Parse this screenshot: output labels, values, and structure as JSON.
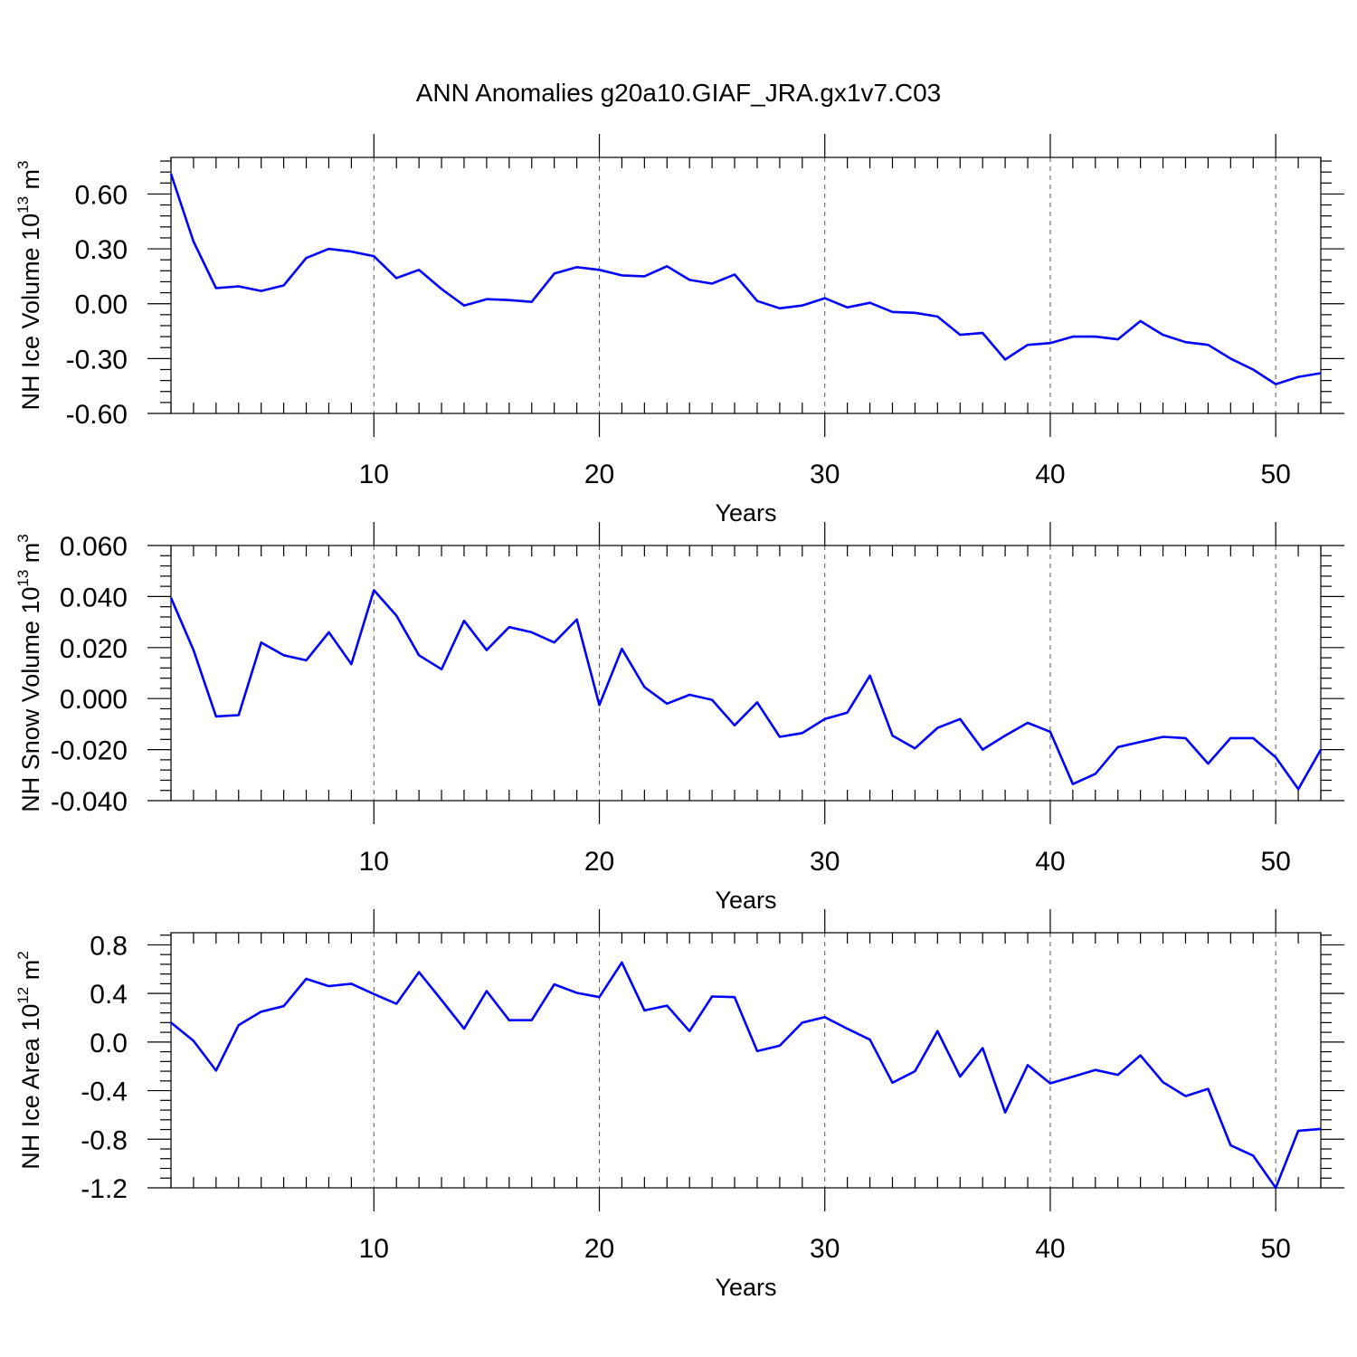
{
  "title": "ANN Anomalies g20a10.GIAF_JRA.gx1v7.C03",
  "colors": {
    "line": "#0000ff",
    "axis": "#000000",
    "grid": "#555555"
  },
  "chart_data": [
    {
      "type": "line",
      "xlabel": "Years",
      "ylabel_parts": [
        "NH Ice Volume 10",
        "13",
        " m",
        "3"
      ],
      "xlim": [
        1,
        52
      ],
      "ylim": [
        -0.6,
        0.8
      ],
      "xticks": [
        10,
        20,
        30,
        40,
        50
      ],
      "xtick_labels": [
        "10",
        "20",
        "30",
        "40",
        "50"
      ],
      "yticks": [
        -0.6,
        -0.3,
        0.0,
        0.3,
        0.6
      ],
      "ytick_labels": [
        "-0.60",
        "-0.30",
        "0.00",
        "0.30",
        "0.60"
      ],
      "y_minor_step": 0.06,
      "grid": "dashed vertical at major x ticks",
      "x": [
        1,
        2,
        3,
        4,
        5,
        6,
        7,
        8,
        9,
        10,
        11,
        12,
        13,
        14,
        15,
        16,
        17,
        18,
        19,
        20,
        21,
        22,
        23,
        24,
        25,
        26,
        27,
        28,
        29,
        30,
        31,
        32,
        33,
        34,
        35,
        36,
        37,
        38,
        39,
        40,
        41,
        42,
        43,
        44,
        45,
        46,
        47,
        48,
        49,
        50,
        51,
        52
      ],
      "y": [
        0.71,
        0.34,
        0.085,
        0.095,
        0.07,
        0.1,
        0.25,
        0.3,
        0.285,
        0.26,
        0.14,
        0.185,
        0.08,
        -0.01,
        0.025,
        0.02,
        0.01,
        0.165,
        0.2,
        0.185,
        0.155,
        0.15,
        0.205,
        0.13,
        0.11,
        0.16,
        0.015,
        -0.025,
        -0.01,
        0.03,
        -0.02,
        0.005,
        -0.045,
        -0.05,
        -0.07,
        -0.17,
        -0.16,
        -0.305,
        -0.225,
        -0.215,
        -0.18,
        -0.18,
        -0.195,
        -0.095,
        -0.17,
        -0.21,
        -0.225,
        -0.3,
        -0.36,
        -0.44,
        -0.4,
        -0.38
      ]
    },
    {
      "type": "line",
      "xlabel": "Years",
      "ylabel_parts": [
        "NH Snow Volume 10",
        "13",
        " m",
        "3"
      ],
      "xlim": [
        1,
        52
      ],
      "ylim": [
        -0.04,
        0.06
      ],
      "xticks": [
        10,
        20,
        30,
        40,
        50
      ],
      "xtick_labels": [
        "10",
        "20",
        "30",
        "40",
        "50"
      ],
      "yticks": [
        -0.04,
        -0.02,
        0.0,
        0.02,
        0.04,
        0.06
      ],
      "ytick_labels": [
        "-0.040",
        "-0.020",
        "0.000",
        "0.020",
        "0.040",
        "0.060"
      ],
      "y_minor_step": 0.004,
      "grid": "dashed vertical at major x ticks",
      "x": [
        1,
        2,
        3,
        4,
        5,
        6,
        7,
        8,
        9,
        10,
        11,
        12,
        13,
        14,
        15,
        16,
        17,
        18,
        19,
        20,
        21,
        22,
        23,
        24,
        25,
        26,
        27,
        28,
        29,
        30,
        31,
        32,
        33,
        34,
        35,
        36,
        37,
        38,
        39,
        40,
        41,
        42,
        43,
        44,
        45,
        46,
        47,
        48,
        49,
        50,
        51,
        52
      ],
      "y": [
        0.0395,
        0.019,
        -0.007,
        -0.0065,
        0.022,
        0.017,
        0.015,
        0.026,
        0.0135,
        0.0425,
        0.0325,
        0.017,
        0.0115,
        0.0305,
        0.019,
        0.028,
        0.026,
        0.022,
        0.031,
        -0.0025,
        0.0195,
        0.0045,
        -0.002,
        0.0015,
        -0.0005,
        -0.0105,
        -0.0015,
        -0.015,
        -0.0135,
        -0.008,
        -0.0055,
        0.009,
        -0.0145,
        -0.0195,
        -0.0115,
        -0.008,
        -0.02,
        -0.0145,
        -0.0095,
        -0.013,
        -0.0335,
        -0.0295,
        -0.019,
        -0.017,
        -0.015,
        -0.0155,
        -0.0255,
        -0.0155,
        -0.0155,
        -0.023,
        -0.0355,
        -0.02
      ]
    },
    {
      "type": "line",
      "xlabel": "Years",
      "ylabel_parts": [
        "NH Ice Area 10",
        "12",
        " m",
        "2"
      ],
      "xlim": [
        1,
        52
      ],
      "ylim": [
        -1.2,
        0.9
      ],
      "xticks": [
        10,
        20,
        30,
        40,
        50
      ],
      "xtick_labels": [
        "10",
        "20",
        "30",
        "40",
        "50"
      ],
      "yticks": [
        -1.2,
        -0.8,
        -0.4,
        0.0,
        0.4,
        0.8
      ],
      "ytick_labels": [
        "-1.2",
        "-0.8",
        "-0.4",
        "0.0",
        "0.4",
        "0.8"
      ],
      "y_minor_step": 0.08,
      "grid": "dashed vertical at major x ticks",
      "x": [
        1,
        2,
        3,
        4,
        5,
        6,
        7,
        8,
        9,
        10,
        11,
        12,
        13,
        14,
        15,
        16,
        17,
        18,
        19,
        20,
        21,
        22,
        23,
        24,
        25,
        26,
        27,
        28,
        29,
        30,
        31,
        32,
        33,
        34,
        35,
        36,
        37,
        38,
        39,
        40,
        41,
        42,
        43,
        44,
        45,
        46,
        47,
        48,
        49,
        50,
        51,
        52
      ],
      "y": [
        0.16,
        0.01,
        -0.235,
        0.14,
        0.25,
        0.295,
        0.52,
        0.46,
        0.48,
        0.395,
        0.315,
        0.575,
        0.345,
        0.11,
        0.42,
        0.18,
        0.18,
        0.475,
        0.405,
        0.37,
        0.655,
        0.26,
        0.3,
        0.09,
        0.375,
        0.37,
        -0.075,
        -0.03,
        0.16,
        0.205,
        0.11,
        0.02,
        -0.335,
        -0.24,
        0.09,
        -0.285,
        -0.05,
        -0.58,
        -0.19,
        -0.34,
        -0.285,
        -0.23,
        -0.27,
        -0.11,
        -0.33,
        -0.445,
        -0.385,
        -0.85,
        -0.935,
        -1.2,
        -0.73,
        -0.715
      ]
    }
  ]
}
